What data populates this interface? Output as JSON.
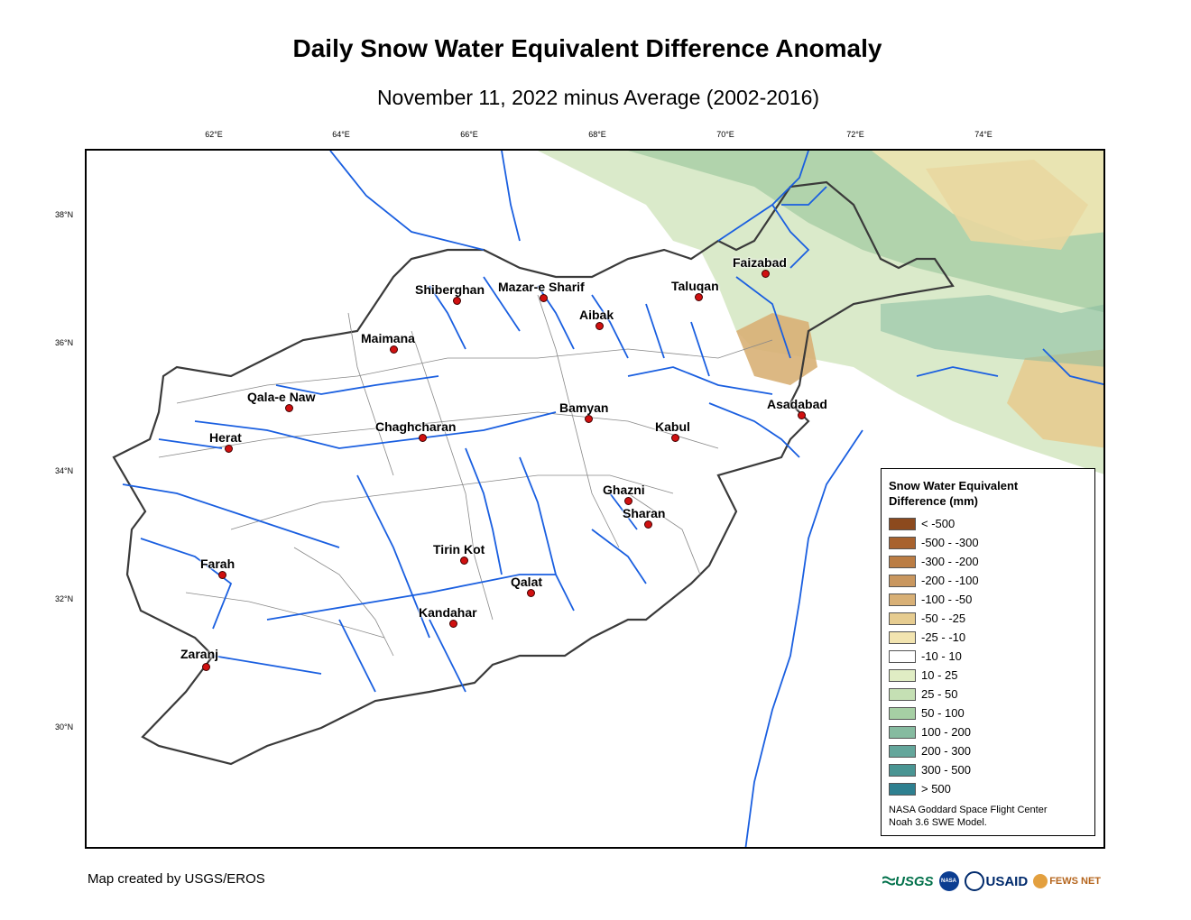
{
  "title": "Daily Snow Water Equivalent Difference Anomaly",
  "subtitle": "November 11, 2022 minus Average (2002-2016)",
  "axes": {
    "longitudes": [
      "62°E",
      "64°E",
      "66°E",
      "68°E",
      "70°E",
      "72°E",
      "74°E"
    ],
    "latitudes": [
      "38°N",
      "36°N",
      "34°N",
      "32°N",
      "30°N"
    ]
  },
  "cities": [
    {
      "name": "Faizabad"
    },
    {
      "name": "Shiberghan"
    },
    {
      "name": "Mazar-e Sharif"
    },
    {
      "name": "Taluqan"
    },
    {
      "name": "Aibak"
    },
    {
      "name": "Maimana"
    },
    {
      "name": "Qala-e Naw"
    },
    {
      "name": "Asadabad"
    },
    {
      "name": "Bamyan"
    },
    {
      "name": "Chaghcharan"
    },
    {
      "name": "Kabul"
    },
    {
      "name": "Herat"
    },
    {
      "name": "Ghazni"
    },
    {
      "name": "Sharan"
    },
    {
      "name": "Tirin Kot"
    },
    {
      "name": "Farah"
    },
    {
      "name": "Qalat"
    },
    {
      "name": "Kandahar"
    },
    {
      "name": "Zaranj"
    }
  ],
  "legend": {
    "title": "Snow Water Equivalent Difference (mm)",
    "items": [
      {
        "label": "< -500",
        "color": "#8c4a1e"
      },
      {
        "label": "-500 - -300",
        "color": "#a8622e"
      },
      {
        "label": "-300 - -200",
        "color": "#bb7d44"
      },
      {
        "label": "-200 - -100",
        "color": "#c9975f"
      },
      {
        "label": "-100 - -50",
        "color": "#d8b076"
      },
      {
        "label": "-50 - -25",
        "color": "#e6cc90"
      },
      {
        "label": "-25 - -10",
        "color": "#f2e4b0"
      },
      {
        "label": "-10 - 10",
        "color": "#ffffff"
      },
      {
        "label": "10 - 25",
        "color": "#e0edc4"
      },
      {
        "label": "25 - 50",
        "color": "#c5e0b4"
      },
      {
        "label": "50 - 100",
        "color": "#a6cfa4"
      },
      {
        "label": "100 - 200",
        "color": "#86bba0"
      },
      {
        "label": "200 - 300",
        "color": "#64a69b"
      },
      {
        "label": "300 - 500",
        "color": "#4a9593"
      },
      {
        "label": "> 500",
        "color": "#2e8090"
      }
    ],
    "credit_line1": "NASA Goddard Space Flight Center",
    "credit_line2": "Noah 3.6 SWE Model."
  },
  "footer": "Map created by USGS/EROS",
  "logos": {
    "usgs": "USGS",
    "nasa": "NASA",
    "usaid": "USAID",
    "fewsnet": "FEWS NET"
  },
  "colors": {
    "river": "#1a5fe0",
    "border": "#3a3a3a",
    "basin": "#888888"
  }
}
